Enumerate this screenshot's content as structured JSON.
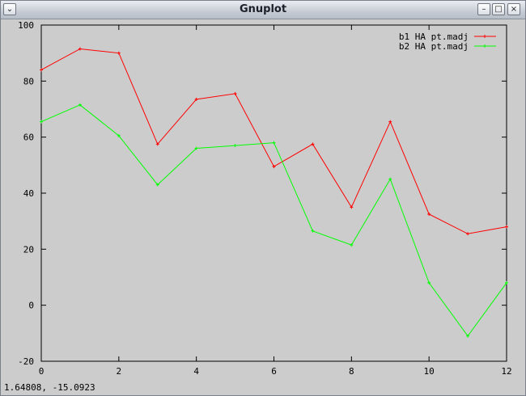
{
  "window": {
    "title": "Gnuplot",
    "menu_icon": "chevron-down-icon",
    "minimize_icon": "minimize-icon",
    "maximize_icon": "maximize-icon",
    "close_icon": "close-icon"
  },
  "status": {
    "coords": "1.64808, -15.0923"
  },
  "chart_data": {
    "type": "line",
    "title": "",
    "xlabel": "",
    "ylabel": "",
    "xlim": [
      0,
      12
    ],
    "ylim": [
      -20,
      100
    ],
    "x_ticks": [
      "0",
      "2",
      "4",
      "6",
      "8",
      "10",
      "12"
    ],
    "y_ticks": [
      "-20",
      "0",
      "20",
      "40",
      "60",
      "80",
      "100"
    ],
    "grid": false,
    "legend_position": "top-right",
    "x": [
      0,
      1,
      2,
      3,
      4,
      5,
      6,
      7,
      8,
      9,
      10,
      11,
      12
    ],
    "series": [
      {
        "name": "b1 HA pt.madj",
        "color": "#ff0000",
        "values": [
          84,
          91.5,
          90,
          57.5,
          73.5,
          75.5,
          49.5,
          57.5,
          35,
          65.5,
          32.5,
          25.5,
          28
        ]
      },
      {
        "name": "b2 HA pt.madj",
        "color": "#00ff00",
        "values": [
          65.5,
          71.5,
          60.5,
          43,
          56,
          57,
          58,
          26.5,
          21.5,
          45,
          8,
          -11,
          8
        ]
      }
    ]
  }
}
